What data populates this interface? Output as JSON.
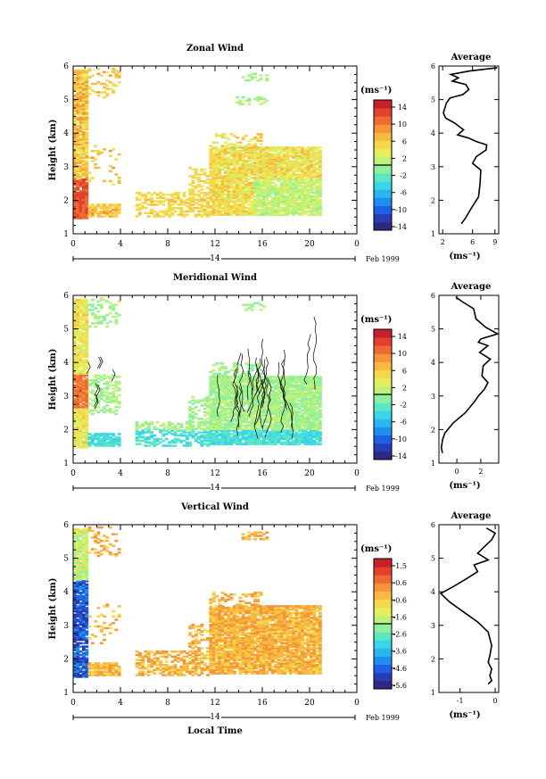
{
  "chart_data": [
    {
      "type": "heatmap",
      "title": "Zonal Wind",
      "ylabel": "Height (km)",
      "ylim": [
        1,
        6
      ],
      "yticks": [
        "1",
        "2",
        "3",
        "4",
        "5",
        "6"
      ],
      "xlim": [
        0,
        24
      ],
      "xticks": [
        "0",
        "4",
        "8",
        "12",
        "16",
        "20",
        "0"
      ],
      "date_day": "14",
      "date_label": "Feb 1999",
      "colorbar": {
        "unit": "(ms⁻¹)",
        "labels": [
          "14",
          "10",
          "6",
          "2",
          "-2",
          "-6",
          "-10",
          "-14"
        ],
        "colors": [
          "#2c2a7f",
          "#273db8",
          "#1f5ee6",
          "#1e8ff0",
          "#2ab6f0",
          "#39d6e6",
          "#5be7c4",
          "#8ef09a",
          "#bdf277",
          "#e3ef5c",
          "#f5d84a",
          "#f7b93e",
          "#f59438",
          "#ef6a30",
          "#e4412c",
          "#c8202a"
        ]
      },
      "average": {
        "title": "Average",
        "xlabel": "(ms⁻¹)",
        "xticks": [
          "2",
          "6",
          "9"
        ],
        "xlim": [
          1.5,
          9.5
        ],
        "profile": [
          [
            4.5,
            1.3
          ],
          [
            5.0,
            1.45
          ],
          [
            5.8,
            1.75
          ],
          [
            6.8,
            2.1
          ],
          [
            7.0,
            2.5
          ],
          [
            7.1,
            2.9
          ],
          [
            6.0,
            3.1
          ],
          [
            6.5,
            3.3
          ],
          [
            7.8,
            3.5
          ],
          [
            7.9,
            3.65
          ],
          [
            6.5,
            3.75
          ],
          [
            5.5,
            3.85
          ],
          [
            4.0,
            3.95
          ],
          [
            4.8,
            4.1
          ],
          [
            3.6,
            4.3
          ],
          [
            2.4,
            4.45
          ],
          [
            2.1,
            4.6
          ],
          [
            2.5,
            4.9
          ],
          [
            3.0,
            5.05
          ],
          [
            4.7,
            5.15
          ],
          [
            5.5,
            5.3
          ],
          [
            5.1,
            5.45
          ],
          [
            3.3,
            5.55
          ],
          [
            4.1,
            5.65
          ],
          [
            3.1,
            5.75
          ],
          [
            5.6,
            5.85
          ],
          [
            9.3,
            5.95
          ]
        ]
      }
    },
    {
      "type": "heatmap",
      "title": "Meridional Wind",
      "ylabel": "Height (km)",
      "ylim": [
        1,
        6
      ],
      "yticks": [
        "1",
        "2",
        "3",
        "4",
        "5",
        "6"
      ],
      "xlim": [
        0,
        24
      ],
      "xticks": [
        "0",
        "4",
        "8",
        "12",
        "16",
        "20",
        "0"
      ],
      "date_day": "14",
      "date_label": "Feb 1999",
      "colorbar": {
        "unit": "(ms⁻¹)",
        "labels": [
          "14",
          "10",
          "6",
          "2",
          "-2",
          "-6",
          "-10",
          "-14"
        ],
        "colors": [
          "#2c2a7f",
          "#273db8",
          "#1f5ee6",
          "#1e8ff0",
          "#2ab6f0",
          "#39d6e6",
          "#5be7c4",
          "#8ef09a",
          "#bdf277",
          "#e3ef5c",
          "#f5d84a",
          "#f7b93e",
          "#f59438",
          "#ef6a30",
          "#e4412c",
          "#c8202a"
        ]
      },
      "average": {
        "title": "Average",
        "xlabel": "(ms⁻¹)",
        "xticks": [
          "0",
          "2"
        ],
        "xlim": [
          -1.5,
          3.5
        ],
        "profile": [
          [
            -1.2,
            1.3
          ],
          [
            -1.3,
            1.45
          ],
          [
            -1.2,
            1.7
          ],
          [
            -1.0,
            1.9
          ],
          [
            -0.3,
            2.2
          ],
          [
            0.7,
            2.5
          ],
          [
            1.4,
            2.8
          ],
          [
            1.8,
            3.0
          ],
          [
            2.3,
            3.2
          ],
          [
            2.6,
            3.4
          ],
          [
            2.1,
            3.6
          ],
          [
            2.2,
            3.9
          ],
          [
            2.8,
            4.1
          ],
          [
            1.9,
            4.3
          ],
          [
            2.6,
            4.5
          ],
          [
            1.8,
            4.6
          ],
          [
            2.0,
            4.7
          ],
          [
            3.4,
            4.85
          ],
          [
            2.4,
            5.05
          ],
          [
            1.6,
            5.3
          ],
          [
            1.4,
            5.6
          ],
          [
            0.5,
            5.8
          ],
          [
            -0.1,
            5.95
          ]
        ]
      }
    },
    {
      "type": "heatmap",
      "title": "Vertical Wind",
      "ylabel": "Height (km)",
      "ylim": [
        1,
        6
      ],
      "yticks": [
        "1",
        "2",
        "3",
        "4",
        "5",
        "6"
      ],
      "xlim": [
        0,
        24
      ],
      "xticks": [
        "0",
        "4",
        "8",
        "12",
        "16",
        "20",
        "0"
      ],
      "xlabel": "Local Time",
      "date_day": "14",
      "date_label": "Feb 1999",
      "colorbar": {
        "unit": "(ms⁻¹)",
        "labels": [
          "1.5",
          "0.6",
          "-0.6",
          "-1.6",
          "-2.6",
          "-3.6",
          "-4.6",
          "-5.6"
        ],
        "colors": [
          "#2c2a7f",
          "#273db8",
          "#1f5ee6",
          "#1e8ff0",
          "#2ab6f0",
          "#39d6e6",
          "#5be7c4",
          "#8ef09a",
          "#bdf277",
          "#e3ef5c",
          "#f5d84a",
          "#f7b93e",
          "#f59438",
          "#ef6a30",
          "#e4412c",
          "#c8202a"
        ]
      },
      "average": {
        "title": "Average",
        "xlabel": "(ms⁻¹)",
        "xticks": [
          "-1",
          "0"
        ],
        "xlim": [
          -1.6,
          0.1
        ],
        "profile": [
          [
            -0.2,
            1.25
          ],
          [
            -0.1,
            1.35
          ],
          [
            -0.15,
            1.5
          ],
          [
            -0.1,
            1.7
          ],
          [
            -0.2,
            1.9
          ],
          [
            -0.15,
            2.1
          ],
          [
            -0.1,
            2.4
          ],
          [
            -0.2,
            2.8
          ],
          [
            -0.5,
            3.1
          ],
          [
            -0.9,
            3.4
          ],
          [
            -1.3,
            3.7
          ],
          [
            -1.55,
            3.95
          ],
          [
            -1.2,
            4.15
          ],
          [
            -0.8,
            4.4
          ],
          [
            -0.5,
            4.6
          ],
          [
            -0.6,
            4.8
          ],
          [
            -0.2,
            4.95
          ],
          [
            -0.5,
            5.15
          ],
          [
            -0.3,
            5.35
          ],
          [
            -0.1,
            5.55
          ],
          [
            0.0,
            5.75
          ],
          [
            -0.25,
            5.9
          ]
        ]
      }
    }
  ]
}
